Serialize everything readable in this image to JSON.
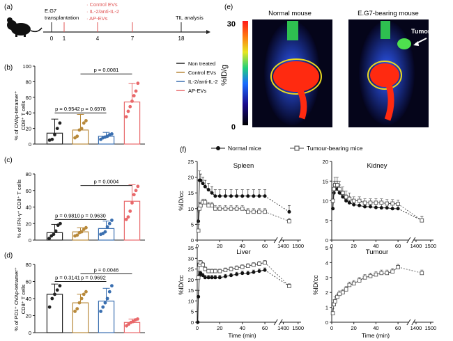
{
  "panel_labels": {
    "a": "(a)",
    "b": "(b)",
    "c": "(c)",
    "d": "(d)",
    "e": "(e)",
    "f": "(f)"
  },
  "timeline": {
    "days": [
      "0",
      "1",
      "4",
      "7",
      "18"
    ],
    "start_label_1": "E.G7",
    "start_label_2": "transplantation",
    "treatments": [
      "· Control EVs",
      "· IL-2/anti-IL-2",
      "· AP-EVs"
    ],
    "end_label": "TIL analysis"
  },
  "legend": {
    "items": [
      {
        "label": "Non treated",
        "color": "#222222"
      },
      {
        "label": "Control EVs",
        "color": "#b8893a"
      },
      {
        "label": "IL-2/anti-IL-2",
        "color": "#3a6fb0"
      },
      {
        "label": "AP-EVs",
        "color": "#e8686a"
      }
    ]
  },
  "imaging": {
    "scale_max": "30",
    "scale_min": "0",
    "scale_unit": "%ID/g",
    "title_left": "Normal mouse",
    "title_right": "E.G7-bearing mouse",
    "tumor_label": "Tumor"
  },
  "chart_data": [
    {
      "id": "b",
      "type": "bar",
      "ylabel_1": "% of OVAp-tetramer⁺",
      "ylabel_2": "CD8⁺ T cells",
      "ylim": [
        0,
        100
      ],
      "yticks": [
        "0",
        "20",
        "40",
        "60",
        "80",
        "100"
      ],
      "categories": [
        "Non treated",
        "Control EVs",
        "IL-2/anti-IL-2",
        "AP-EVs"
      ],
      "means": [
        14,
        18,
        10,
        54
      ],
      "sd": [
        18,
        20,
        5,
        24
      ],
      "points": [
        [
          5,
          6,
          12,
          20,
          27
        ],
        [
          8,
          10,
          18,
          20,
          27,
          30
        ],
        [
          6,
          8,
          9,
          10,
          12,
          13
        ],
        [
          35,
          42,
          48,
          55,
          62,
          68,
          78
        ]
      ],
      "pvalues": [
        {
          "label": "p = 0.9542",
          "from": 0,
          "to": 1,
          "y": 40
        },
        {
          "label": "p = 0.6978",
          "from": 1,
          "to": 2,
          "y": 40
        },
        {
          "label": "p = 0.0081",
          "from": 1,
          "to": 3,
          "y": 90
        }
      ]
    },
    {
      "id": "c",
      "type": "bar",
      "ylabel_1": "% of IFN-γ⁺ CD8⁺ T cells",
      "ylabel_2": "",
      "ylim": [
        0,
        80
      ],
      "yticks": [
        "0",
        "20",
        "40",
        "60",
        "80"
      ],
      "categories": [
        "Non treated",
        "Control EVs",
        "IL-2/anti-IL-2",
        "AP-EVs"
      ],
      "means": [
        9,
        10,
        14,
        47
      ],
      "sd": [
        10,
        5,
        9,
        20
      ],
      "points": [
        [
          2,
          5,
          7,
          11,
          18,
          20
        ],
        [
          5,
          6,
          9,
          10,
          13,
          15
        ],
        [
          7,
          8,
          10,
          16,
          20,
          24
        ],
        [
          25,
          28,
          35,
          45,
          55,
          60,
          65
        ]
      ],
      "pvalues": [
        {
          "label": "p = 0.9810",
          "from": 0,
          "to": 1,
          "y": 25
        },
        {
          "label": "p = 0.9630",
          "from": 1,
          "to": 2,
          "y": 25
        },
        {
          "label": "p = 0.0004",
          "from": 1,
          "to": 3,
          "y": 66
        }
      ]
    },
    {
      "id": "d",
      "type": "bar",
      "ylabel_1": "% of PD1⁺ OVAp-tetramer⁺",
      "ylabel_2": "CD8⁺ T cells",
      "ylim": [
        0,
        80
      ],
      "yticks": [
        "0",
        "20",
        "40",
        "60",
        "80"
      ],
      "categories": [
        "Non treated",
        "Control EVs",
        "IL-2/anti-IL-2",
        "AP-EVs"
      ],
      "means": [
        45,
        35,
        37,
        12
      ],
      "sd": [
        12,
        10,
        15,
        4
      ],
      "points": [
        [
          30,
          40,
          45,
          50,
          55
        ],
        [
          25,
          28,
          35,
          40,
          45,
          48
        ],
        [
          25,
          30,
          35,
          40,
          48,
          55
        ],
        [
          8,
          10,
          12,
          13,
          15,
          16
        ]
      ],
      "pvalues": [
        {
          "label": "p = 0.3141",
          "from": 0,
          "to": 1,
          "y": 60
        },
        {
          "label": "p = 0.9692",
          "from": 1,
          "to": 2,
          "y": 60
        },
        {
          "label": "p = 0.0046",
          "from": 1,
          "to": 3,
          "y": 69
        }
      ]
    },
    {
      "id": "f-spleen",
      "type": "line",
      "title": "Spleen",
      "ylabel": "%ID/cc",
      "xlabel": "",
      "ylim": [
        0,
        25
      ],
      "yticks": [
        "0",
        "5",
        "10",
        "15",
        "20",
        "25"
      ],
      "xticks": [
        "0",
        "20",
        "40",
        "60",
        "1400",
        "1500"
      ],
      "series": [
        {
          "name": "Normal mice",
          "x": [
            1,
            2,
            3,
            5,
            7,
            10,
            13,
            16,
            20,
            25,
            30,
            35,
            40,
            45,
            50,
            55,
            60,
            1440
          ],
          "y": [
            6,
            19,
            19,
            18,
            17,
            16,
            15,
            14,
            14,
            14,
            14,
            14,
            14,
            14,
            14,
            14,
            14,
            9
          ],
          "err": [
            3,
            3,
            2,
            2,
            2,
            2,
            2,
            2,
            2,
            2,
            2,
            2,
            2,
            2,
            2,
            2,
            2,
            2
          ]
        },
        {
          "name": "Tumour-bearing mice",
          "x": [
            1,
            2,
            3,
            5,
            7,
            10,
            13,
            16,
            20,
            25,
            30,
            35,
            40,
            45,
            50,
            55,
            60,
            1440
          ],
          "y": [
            3,
            10,
            11,
            12,
            12,
            11,
            11,
            10,
            10,
            10,
            10,
            10,
            10,
            9,
            9,
            9,
            9,
            6
          ],
          "err": [
            2,
            2,
            1,
            1,
            1,
            1,
            1,
            1,
            1,
            1,
            1,
            1,
            1,
            1,
            1,
            1,
            1,
            1
          ]
        }
      ]
    },
    {
      "id": "f-kidney",
      "type": "line",
      "title": "Kidney",
      "ylabel": "",
      "xlabel": "",
      "ylim": [
        0,
        20
      ],
      "yticks": [
        "0",
        "5",
        "10",
        "15",
        "20"
      ],
      "xticks": [
        "0",
        "20",
        "40",
        "60",
        "1400",
        "1500"
      ],
      "series": [
        {
          "name": "Normal mice",
          "x": [
            1,
            2,
            3,
            5,
            7,
            10,
            13,
            16,
            20,
            25,
            30,
            35,
            40,
            45,
            50,
            55,
            60,
            1440
          ],
          "y": [
            8,
            12,
            13,
            13,
            12,
            11,
            10,
            9.5,
            9,
            8.8,
            8.5,
            8.5,
            8.3,
            8.2,
            8.2,
            8,
            8,
            5
          ],
          "err": [
            2,
            2,
            2,
            2,
            2,
            1.5,
            1.5,
            1.5,
            1,
            1,
            1,
            1,
            1,
            1,
            1,
            1,
            1,
            1
          ]
        },
        {
          "name": "Tumour-bearing mice",
          "x": [
            1,
            2,
            3,
            5,
            7,
            10,
            13,
            16,
            20,
            25,
            30,
            35,
            40,
            45,
            50,
            55,
            60,
            1440
          ],
          "y": [
            10,
            13,
            14,
            14,
            13,
            12,
            11,
            10.5,
            10,
            10,
            9.5,
            9.5,
            9.5,
            9.5,
            9.3,
            9.3,
            9.2,
            5
          ],
          "err": [
            2,
            2,
            2,
            2,
            2,
            1.5,
            1.5,
            1.5,
            1,
            1,
            1,
            1,
            1,
            1,
            1,
            1,
            1,
            1
          ]
        }
      ]
    },
    {
      "id": "f-liver",
      "type": "line",
      "title": "Liver",
      "ylabel": "%ID/cc",
      "xlabel": "Time (min)",
      "ylim": [
        0,
        35
      ],
      "yticks": [
        "0",
        "5",
        "10",
        "15",
        "20",
        "25",
        "30",
        "35"
      ],
      "xticks": [
        "0",
        "20",
        "40",
        "60",
        "1400",
        "1500"
      ],
      "series": [
        {
          "name": "Normal mice",
          "x": [
            0.5,
            1,
            2,
            3,
            5,
            7,
            10,
            13,
            16,
            20,
            25,
            30,
            35,
            40,
            45,
            50,
            55,
            60,
            1440
          ],
          "y": [
            0,
            12,
            22,
            23,
            22,
            21,
            21,
            21,
            21,
            21,
            21.5,
            22,
            22.5,
            23,
            23,
            23.5,
            24,
            24.5,
            17
          ],
          "err": [
            0,
            3,
            2,
            1,
            1,
            1,
            1,
            1,
            1,
            1,
            1,
            1,
            1,
            1,
            1,
            1,
            1,
            1,
            1
          ]
        },
        {
          "name": "Tumour-bearing mice",
          "x": [
            1,
            2,
            3,
            5,
            7,
            10,
            13,
            16,
            20,
            25,
            30,
            35,
            40,
            45,
            50,
            55,
            60,
            1440
          ],
          "y": [
            21,
            27,
            28,
            27,
            25,
            24,
            24,
            24,
            24,
            24.5,
            25,
            25.5,
            26,
            26.5,
            27,
            27.5,
            28,
            17
          ],
          "err": [
            3,
            2,
            1,
            1,
            1,
            1,
            1,
            1,
            1,
            1,
            1,
            1,
            1,
            1,
            1,
            1,
            1,
            1
          ]
        }
      ]
    },
    {
      "id": "f-tumour",
      "type": "line",
      "title": "Tumour",
      "ylabel": "%ID/cc",
      "xlabel": "Time (min)",
      "ylim": [
        0,
        5
      ],
      "yticks": [
        "0",
        "1",
        "2",
        "3",
        "4",
        "5"
      ],
      "xticks": [
        "0",
        "20",
        "40",
        "60",
        "1400",
        "1500"
      ],
      "series": [
        {
          "name": "Tumour-bearing mice",
          "x": [
            1,
            2,
            3,
            5,
            7,
            10,
            13,
            16,
            20,
            25,
            30,
            35,
            40,
            45,
            50,
            55,
            60,
            1440
          ],
          "y": [
            0.6,
            1.2,
            1.4,
            1.7,
            1.9,
            2.0,
            2.2,
            2.5,
            2.6,
            2.8,
            3.0,
            3.1,
            3.2,
            3.3,
            3.3,
            3.4,
            3.7,
            3.3
          ],
          "err": [
            0.3,
            0.3,
            0.3,
            0.2,
            0.2,
            0.2,
            0.2,
            0.2,
            0.2,
            0.2,
            0.2,
            0.2,
            0.2,
            0.2,
            0.2,
            0.2,
            0.2,
            0.2
          ]
        }
      ]
    }
  ],
  "curve_legend": {
    "normal": "Normal mice",
    "tumour": "Tumour-bearing mice"
  }
}
